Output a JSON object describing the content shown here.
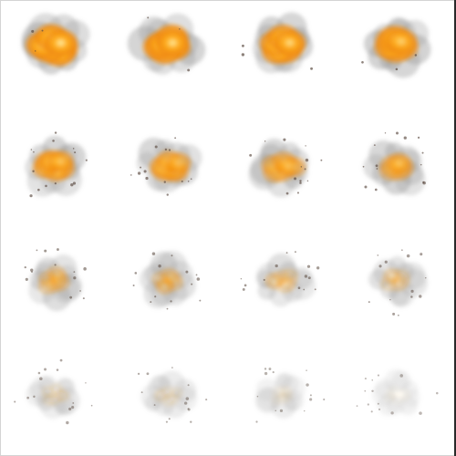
{
  "sprite_sheet": {
    "rows": 4,
    "columns": 4,
    "frame_count": 16,
    "background_color": "#ffffff",
    "palette": {
      "smoke": "#9a9a9a",
      "fire_outer": "#f08a10",
      "fire_mid": "#ffb020",
      "fire_core": "#fff4b0",
      "ember": "#5a4a40"
    },
    "frames": [
      {
        "fire": 1.0,
        "smoke": 0.55,
        "core": 1.0
      },
      {
        "fire": 0.98,
        "smoke": 0.5,
        "core": 0.9
      },
      {
        "fire": 0.92,
        "smoke": 0.55,
        "core": 0.8
      },
      {
        "fire": 0.85,
        "smoke": 0.55,
        "core": 0.6
      },
      {
        "fire": 0.75,
        "smoke": 0.5,
        "core": 0.5
      },
      {
        "fire": 0.68,
        "smoke": 0.5,
        "core": 0.45
      },
      {
        "fire": 0.55,
        "smoke": 0.5,
        "core": 0.4
      },
      {
        "fire": 0.45,
        "smoke": 0.5,
        "core": 0.3
      },
      {
        "fire": 0.32,
        "smoke": 0.4,
        "core": 0.0
      },
      {
        "fire": 0.28,
        "smoke": 0.4,
        "core": 0.0
      },
      {
        "fire": 0.22,
        "smoke": 0.38,
        "core": 0.0
      },
      {
        "fire": 0.18,
        "smoke": 0.35,
        "core": 0.0
      },
      {
        "fire": 0.1,
        "smoke": 0.28,
        "core": 0.0
      },
      {
        "fire": 0.08,
        "smoke": 0.26,
        "core": 0.0
      },
      {
        "fire": 0.04,
        "smoke": 0.22,
        "core": 0.0
      },
      {
        "fire": 0.02,
        "smoke": 0.18,
        "core": 0.0
      }
    ]
  }
}
